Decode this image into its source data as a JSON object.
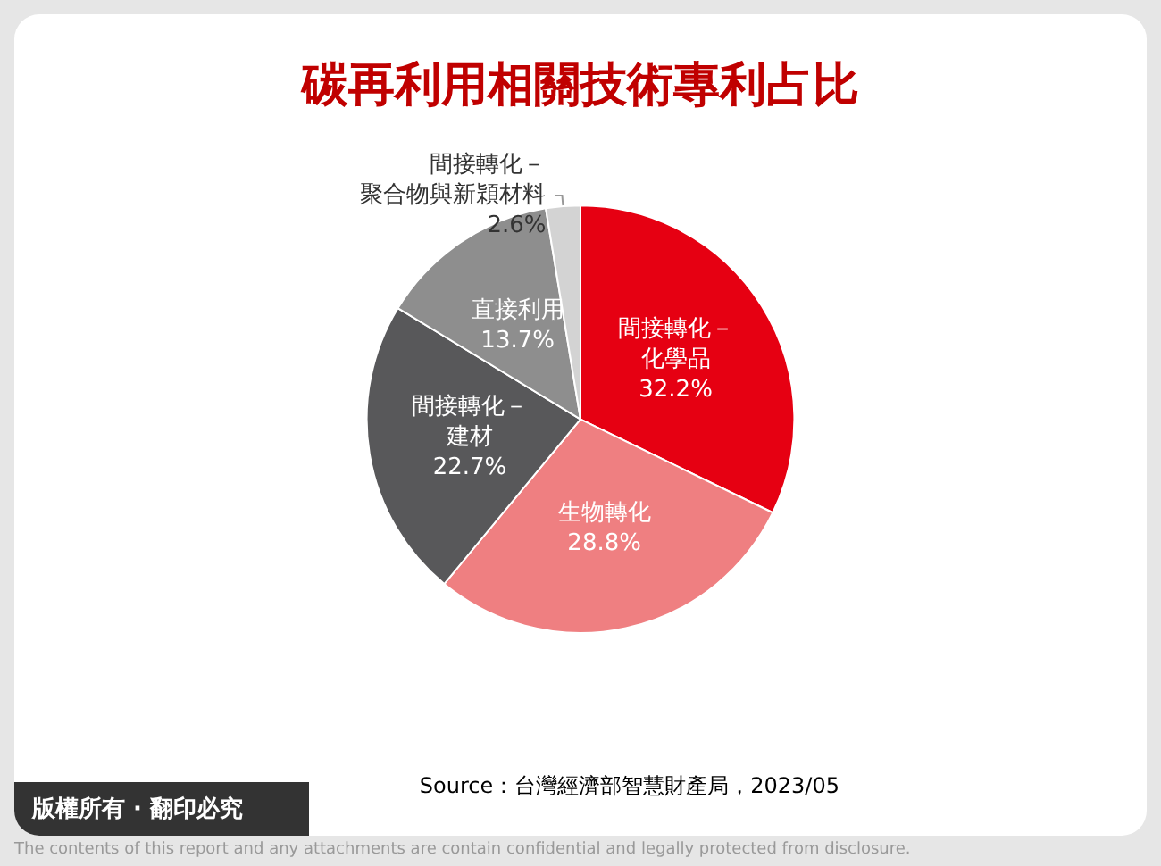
{
  "chart_data": {
    "type": "pie",
    "title": "碳再利用相關技術專利占比",
    "categories": [
      "間接轉化－化學品",
      "生物轉化",
      "間接轉化－建材",
      "直接利用",
      "間接轉化－聚合物與新穎材料"
    ],
    "values": [
      32.2,
      28.8,
      22.7,
      13.7,
      2.6
    ],
    "value_labels": [
      "32.2%",
      "28.8%",
      "22.7%",
      "13.7%",
      "2.6%"
    ],
    "colors": [
      "#e60012",
      "#ef7f81",
      "#58585a",
      "#8e8e8e",
      "#d3d3d3"
    ],
    "legend": false,
    "annotations": [
      "Source：台灣經濟部智慧財產局，2023/05",
      "版權所有 · 翻印必究",
      "The contents of this report and any attachments are contain confidential and legally protected from disclosure."
    ]
  }
}
